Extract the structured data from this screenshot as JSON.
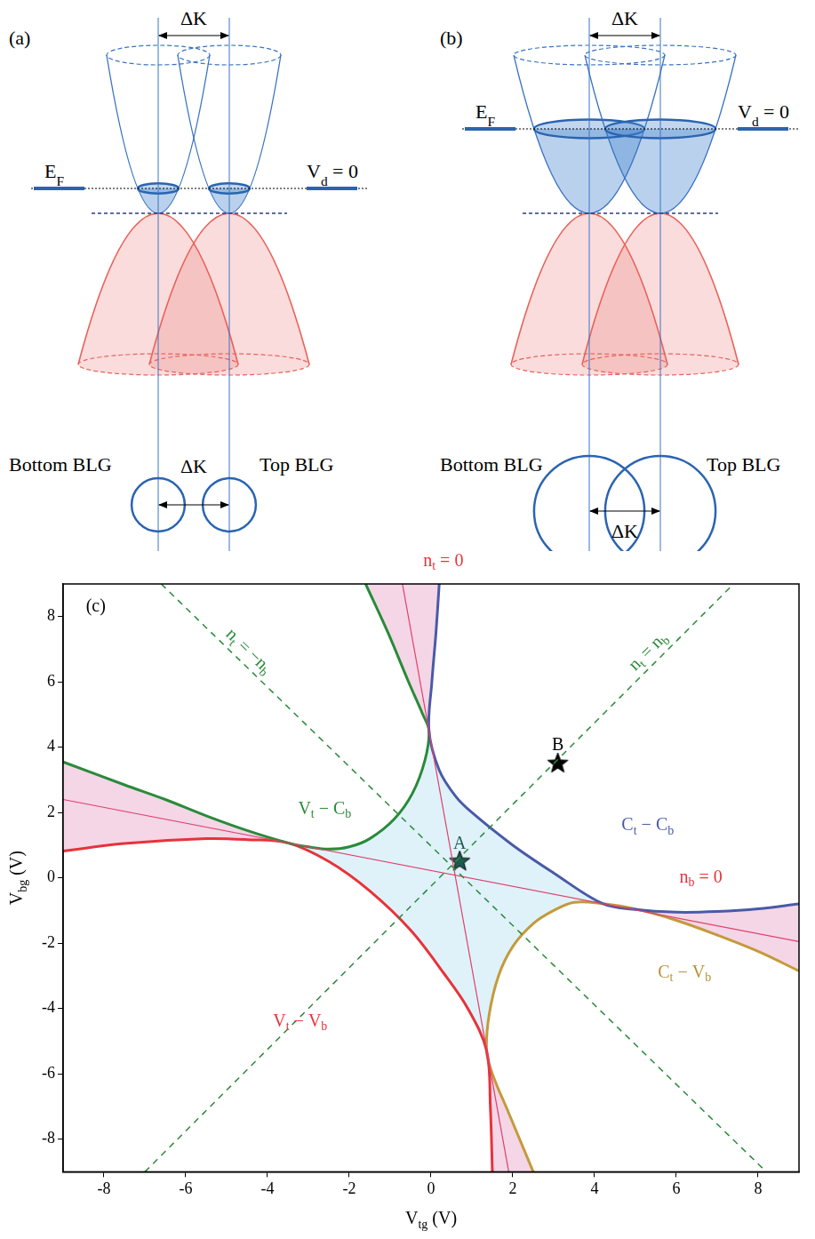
{
  "diagrams": [
    {
      "label": "(a)",
      "delta_k": "ΔK",
      "fermi_level": "EF",
      "bias": "Vd = 0",
      "left": "Bottom BLG",
      "right": "Top BLG"
    },
    {
      "label": "(b)",
      "delta_k": "ΔK",
      "fermi_level": "EF",
      "bias": "Vd = 0",
      "left": "Bottom BLG",
      "right": "Top BLG"
    }
  ],
  "chart_data": {
    "type": "line",
    "x_label": "Vtg (V)",
    "y_label": "Vbg (V)",
    "xlim": [
      -9,
      9
    ],
    "ylim": [
      -9,
      9
    ],
    "xticks": [
      -8,
      -6,
      -4,
      -2,
      0,
      2,
      4,
      6,
      8
    ],
    "yticks": [
      -8,
      -6,
      -4,
      -2,
      0,
      2,
      4,
      6,
      8
    ],
    "grid": false,
    "regions": [
      {
        "color": "#dff2fa",
        "x": [
          -0.05,
          0.2,
          0.6,
          1.0,
          2.0,
          3.0,
          4.2,
          3.5,
          3.0,
          2.5,
          2.0,
          1.65,
          1.42,
          1.36,
          0.9,
          0.3,
          -0.5,
          -1.5,
          -2.5,
          -3.5,
          -3.0,
          -2.5,
          -2.0,
          -1.5,
          -0.9,
          -0.45,
          -0.15
        ],
        "y": [
          4.5,
          3.3,
          2.5,
          2.0,
          1.0,
          0.15,
          -0.79,
          -0.75,
          -1.0,
          -1.4,
          -2.1,
          -3.0,
          -4.2,
          -5.3,
          -4.0,
          -2.9,
          -1.6,
          -0.4,
          0.5,
          1.07,
          0.95,
          0.88,
          0.95,
          1.2,
          1.8,
          2.6,
          3.6
        ]
      },
      {
        "color": "#f4d6e7",
        "x": [
          -1.6,
          -1.05,
          -0.55,
          -0.2,
          -0.05,
          0.02,
          0.12,
          0.2
        ],
        "y": [
          9,
          7.5,
          6,
          5,
          4.5,
          6,
          7.5,
          9
        ]
      },
      {
        "color": "#f4d6e7",
        "x": [
          -3.5,
          -4.5,
          -5.5,
          -6.5,
          -7.5,
          -9,
          -9,
          -7.5,
          -5.5,
          -4.5
        ],
        "y": [
          1.07,
          1.45,
          1.9,
          2.4,
          2.85,
          3.55,
          0.82,
          1.05,
          1.2,
          1.17
        ]
      },
      {
        "color": "#f4d6e7",
        "x": [
          1.36,
          1.45,
          1.5,
          2.5,
          1.9,
          1.5
        ],
        "y": [
          -5.3,
          -7.0,
          -9,
          -9,
          -7.2,
          -6.0
        ]
      },
      {
        "color": "#f4d6e7",
        "x": [
          4.2,
          5.0,
          6.0,
          7.0,
          8.0,
          9.0,
          9.0,
          8.0,
          7.0,
          6.0,
          5.0
        ],
        "y": [
          -0.79,
          -0.97,
          -1.05,
          -1.03,
          -0.95,
          -0.8,
          -2.85,
          -2.25,
          -1.75,
          -1.3,
          -0.95
        ]
      }
    ],
    "series": [
      {
        "color": "#2a8a3a",
        "line_style": "dashed",
        "name": "nt = nb",
        "x": [
          -7,
          7.4
        ],
        "y": [
          -9,
          9
        ]
      },
      {
        "color": "#2a8a3a",
        "line_style": "dashed",
        "name": "nt = −nb",
        "x": [
          -6.6,
          8.2
        ],
        "y": [
          9,
          -9
        ]
      },
      {
        "color": "#e0406a",
        "line_style": "thin",
        "x": [
          -0.7,
          1.9
        ],
        "y": [
          9,
          -9
        ]
      },
      {
        "color": "#e0406a",
        "line_style": "thin",
        "x": [
          -9,
          9
        ],
        "y": [
          2.4,
          -1.95
        ]
      },
      {
        "color": "#4a5aa8",
        "line_style": "solid",
        "x": [
          0.2,
          0.12,
          0.02,
          -0.05,
          0.2,
          0.6,
          1.0,
          2.0,
          3.0,
          4.2,
          5.0,
          6.0,
          7.0,
          8.0,
          9.0
        ],
        "y": [
          9,
          7.5,
          6,
          4.5,
          3.3,
          2.5,
          2.0,
          1.0,
          0.15,
          -0.79,
          -0.97,
          -1.05,
          -1.03,
          -0.95,
          -0.8
        ]
      },
      {
        "color": "#2a8a3a",
        "line_style": "solid",
        "x": [
          -1.6,
          -1.05,
          -0.55,
          -0.2,
          -0.05,
          -0.15,
          -0.45,
          -0.9,
          -1.5,
          -2.0,
          -2.5,
          -3.0,
          -3.5,
          -4.5,
          -5.5,
          -6.5,
          -7.5,
          -9.0
        ],
        "y": [
          9,
          7.5,
          6,
          5,
          4.5,
          3.6,
          2.6,
          1.8,
          1.2,
          0.95,
          0.88,
          0.95,
          1.07,
          1.45,
          1.9,
          2.4,
          2.85,
          3.55
        ]
      },
      {
        "color": "#e8323a",
        "line_style": "solid",
        "x": [
          -9,
          -7.5,
          -5.5,
          -4.5,
          -3.5,
          -2.5,
          -1.5,
          -0.5,
          0.3,
          0.9,
          1.36,
          1.45,
          1.5
        ],
        "y": [
          0.82,
          1.05,
          1.2,
          1.17,
          1.07,
          0.5,
          -0.4,
          -1.6,
          -2.9,
          -4.0,
          -5.3,
          -7.0,
          -9.0
        ]
      },
      {
        "color": "#c49a3c",
        "line_style": "solid",
        "x": [
          2.5,
          1.9,
          1.5,
          1.36,
          1.42,
          1.65,
          2.0,
          2.5,
          3.0,
          3.5,
          4.2,
          5.0,
          6.0,
          7.0,
          8.0,
          9.0
        ],
        "y": [
          -9,
          -7.2,
          -6.0,
          -5.3,
          -4.2,
          -3.0,
          -2.1,
          -1.4,
          -1.0,
          -0.75,
          -0.79,
          -0.95,
          -1.3,
          -1.75,
          -2.25,
          -2.85
        ]
      },
      {
        "type": "scatter",
        "marker": "star",
        "colors": [
          "#1e5a50",
          "#000000"
        ],
        "x": [
          0.7,
          3.1
        ],
        "y": [
          0.5,
          3.5
        ],
        "labels": [
          "A",
          "B"
        ]
      }
    ],
    "annotations": [
      {
        "text": "(c)",
        "x": -8.2,
        "y": 8.3,
        "color": "#000000"
      },
      {
        "text": "nt = 0",
        "x": 0.3,
        "y": 9.7,
        "color": "#e8323a"
      },
      {
        "text": "nb = 0",
        "x": 6.6,
        "y": 0.0,
        "color": "#e8323a"
      },
      {
        "text": "Vt − Cb",
        "x": -2.6,
        "y": 2.1,
        "color": "#2a8a3a"
      },
      {
        "text": "Ct − Cb",
        "x": 5.3,
        "y": 1.6,
        "color": "#4a5aa8"
      },
      {
        "text": "Ct − Vb",
        "x": 6.2,
        "y": -2.9,
        "color": "#b8903a"
      },
      {
        "text": "Vt − Vb",
        "x": -3.2,
        "y": -4.4,
        "color": "#e8323a"
      }
    ]
  }
}
